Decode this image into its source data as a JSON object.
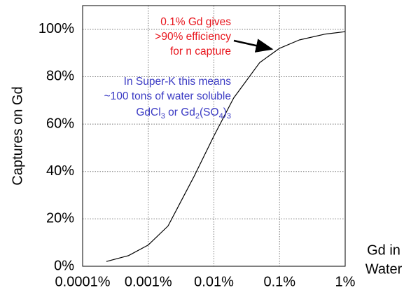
{
  "chart_data": {
    "type": "line",
    "ylabel": "Captures on Gd",
    "xlabel_lines": [
      "Gd in",
      "Water"
    ],
    "x": [
      0.00023,
      0.0005,
      0.001,
      0.002,
      0.005,
      0.01,
      0.02,
      0.05,
      0.1,
      0.2,
      0.5,
      1
    ],
    "series": [
      {
        "color": "#000000",
        "values": [
          2,
          4.5,
          9,
          17,
          38,
          55,
          71,
          86,
          92,
          95.5,
          98,
          99
        ]
      }
    ],
    "xlog": true,
    "xlim": [
      0.0001,
      1
    ],
    "xticks": [
      {
        "value": 0.0001,
        "label": "0.0001%"
      },
      {
        "value": 0.001,
        "label": "0.001%"
      },
      {
        "value": 0.01,
        "label": "0.01%"
      },
      {
        "value": 0.1,
        "label": "0.1%"
      },
      {
        "value": 1,
        "label": "1%"
      }
    ],
    "ylim": [
      0,
      110
    ],
    "yticks": [
      {
        "value": 0,
        "label": "0%"
      },
      {
        "value": 20,
        "label": "20%"
      },
      {
        "value": 40,
        "label": "40%"
      },
      {
        "value": 60,
        "label": "60%"
      },
      {
        "value": 80,
        "label": "80%"
      },
      {
        "value": 100,
        "label": "100%"
      }
    ],
    "grid": true,
    "annotations": [
      {
        "color": "#e8141c",
        "lines": [
          "0.1% Gd gives",
          ">90% efficiency",
          "for n capture"
        ]
      },
      {
        "color": "#3b3bc4",
        "lines": [
          "In Super-K this means",
          "~100 tons of water soluble"
        ],
        "formula": [
          "GdCl",
          "3",
          " or Gd",
          "2",
          "(SO",
          "4",
          ")",
          "3"
        ]
      }
    ]
  }
}
